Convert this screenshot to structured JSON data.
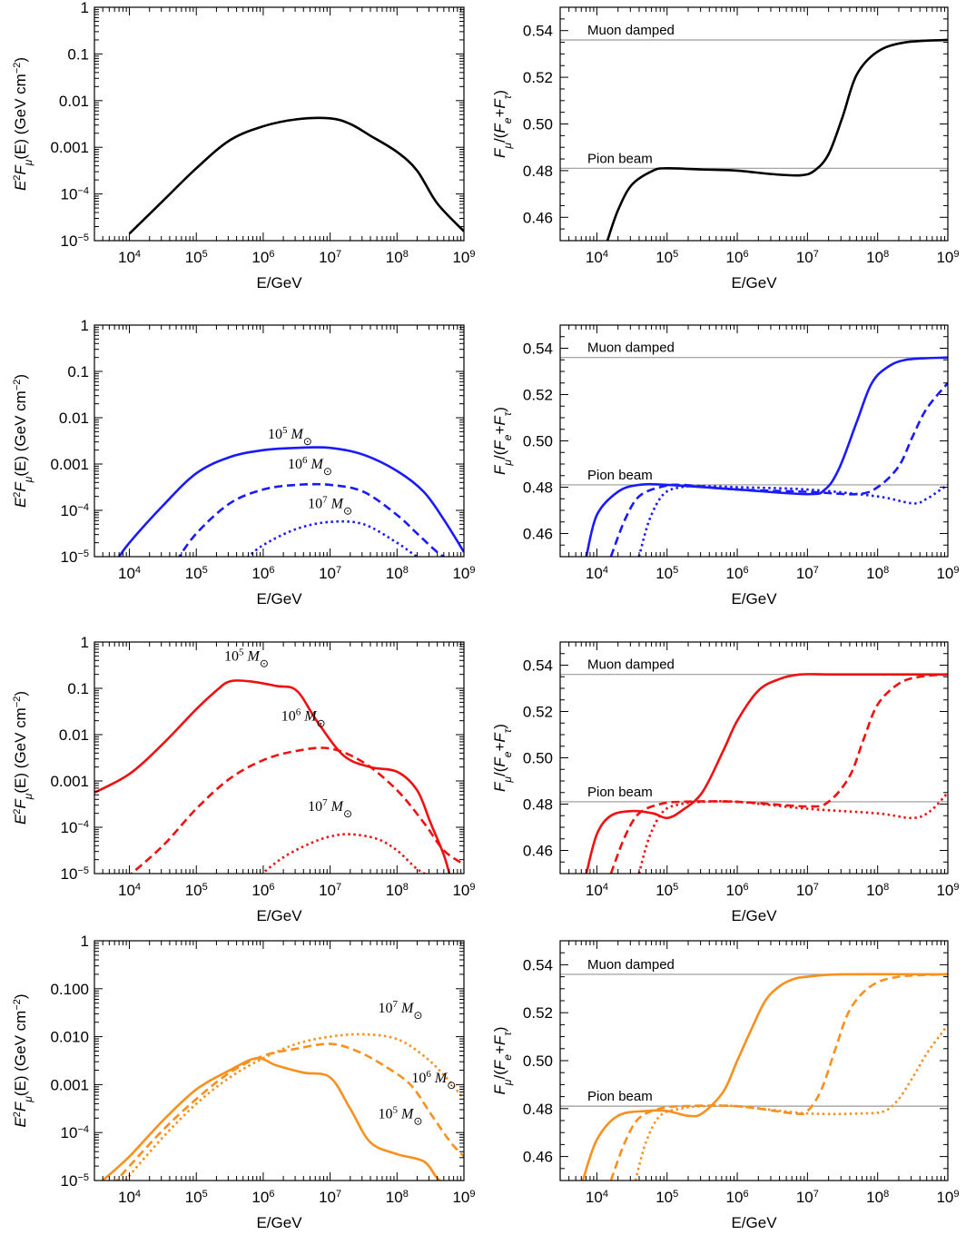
{
  "colors": {
    "black": "#000000",
    "blue": "#1a1aff",
    "red": "#ee1111",
    "orange": "#f7901e",
    "refline": "#999999"
  },
  "chart_data": [
    {
      "panel": "row1-flux",
      "type": "line",
      "xlabel": "E/GeV",
      "ylabel": "E²F_μ(E) (GeV cm⁻²)",
      "xscale": "log",
      "yscale": "log",
      "xlim": [
        3000,
        1000000000.0
      ],
      "ylim": [
        1e-05,
        1
      ],
      "xticklabels": [
        "10⁴",
        "10⁵",
        "10⁶",
        "10⁷",
        "10⁸",
        "10⁹"
      ],
      "yticklabels": [
        "10⁻⁵",
        "10⁻⁴",
        "0.001",
        "0.01",
        "0.1",
        "1"
      ],
      "series": [
        {
          "color": "black",
          "style": "solid",
          "logx": [
            4.0,
            4.5,
            5.0,
            5.5,
            6.0,
            6.5,
            7.0,
            7.3,
            7.6,
            8.0,
            8.3,
            8.6,
            9.0
          ],
          "logy": [
            -4.85,
            -4.15,
            -3.45,
            -2.85,
            -2.55,
            -2.4,
            -2.38,
            -2.5,
            -2.75,
            -3.1,
            -3.5,
            -4.2,
            -4.8
          ]
        }
      ],
      "labels": []
    },
    {
      "panel": "row1-ratio",
      "type": "line",
      "xlabel": "E/GeV",
      "ylabel": "F_μ/(F_e+F_τ)",
      "xscale": "log",
      "xlim": [
        3000,
        1000000000.0
      ],
      "ylim": [
        0.45,
        0.55
      ],
      "xticklabels": [
        "10⁴",
        "10⁵",
        "10⁶",
        "10⁷",
        "10⁸",
        "10⁹"
      ],
      "yticklabels": [
        "0.46",
        "0.48",
        "0.50",
        "0.52",
        "0.54"
      ],
      "reflines": [
        {
          "y": 0.536,
          "text": "Muon damped"
        },
        {
          "y": 0.481,
          "text": "Pion beam"
        }
      ],
      "series": [
        {
          "color": "black",
          "style": "solid",
          "logx": [
            4.15,
            4.3,
            4.5,
            4.8,
            5.0,
            5.5,
            6.0,
            6.5,
            6.9,
            7.1,
            7.3,
            7.5,
            7.7,
            8.0,
            8.4,
            9.0
          ],
          "y": [
            0.45,
            0.463,
            0.474,
            0.48,
            0.481,
            0.4805,
            0.48,
            0.4785,
            0.478,
            0.48,
            0.487,
            0.503,
            0.521,
            0.531,
            0.535,
            0.536
          ]
        }
      ]
    },
    {
      "panel": "row2-flux",
      "type": "line",
      "xlabel": "E/GeV",
      "ylabel": "E²F_μ(E) (GeV cm⁻²)",
      "xscale": "log",
      "yscale": "log",
      "xlim": [
        3000,
        1000000000.0
      ],
      "ylim": [
        1e-05,
        1
      ],
      "xticklabels": [
        "10⁴",
        "10⁵",
        "10⁶",
        "10⁷",
        "10⁸",
        "10⁹"
      ],
      "yticklabels": [
        "10⁻⁵",
        "10⁻⁴",
        "0.001",
        "0.01",
        "0.1",
        "1"
      ],
      "series": [
        {
          "name": "10⁵ M☉",
          "color": "blue",
          "style": "solid",
          "logx": [
            3.8,
            4.0,
            4.5,
            5.0,
            5.5,
            6.0,
            6.5,
            7.0,
            7.5,
            8.0,
            8.4,
            8.7,
            9.0
          ],
          "logy": [
            -5.1,
            -4.7,
            -3.9,
            -3.2,
            -2.85,
            -2.7,
            -2.65,
            -2.65,
            -2.8,
            -3.15,
            -3.6,
            -4.2,
            -4.9
          ]
        },
        {
          "name": "10⁶ M☉",
          "color": "blue",
          "style": "dashed",
          "logx": [
            4.7,
            5.0,
            5.5,
            6.0,
            6.5,
            7.0,
            7.5,
            8.0,
            8.3,
            8.6,
            8.8
          ],
          "logy": [
            -5.1,
            -4.5,
            -3.85,
            -3.55,
            -3.45,
            -3.45,
            -3.6,
            -4.1,
            -4.5,
            -4.9,
            -5.1
          ]
        },
        {
          "name": "10⁷ M☉",
          "color": "blue",
          "style": "dotted",
          "logx": [
            5.7,
            6.0,
            6.5,
            7.0,
            7.5,
            8.0,
            8.3,
            8.5
          ],
          "logy": [
            -5.1,
            -4.75,
            -4.4,
            -4.25,
            -4.3,
            -4.7,
            -5.0,
            -5.1
          ]
        }
      ],
      "labels": [
        {
          "text": "10⁵ M☉",
          "logx": 6.4,
          "logy": -2.45
        },
        {
          "text": "10⁶ M☉",
          "logx": 6.7,
          "logy": -3.1
        },
        {
          "text": "10⁷ M☉",
          "logx": 7.0,
          "logy": -3.95
        }
      ]
    },
    {
      "panel": "row2-ratio",
      "type": "line",
      "xlabel": "E/GeV",
      "ylabel": "F_μ/(F_e+F_τ)",
      "xscale": "log",
      "xlim": [
        3000,
        1000000000.0
      ],
      "ylim": [
        0.45,
        0.55
      ],
      "xticklabels": [
        "10⁴",
        "10⁵",
        "10⁶",
        "10⁷",
        "10⁸",
        "10⁹"
      ],
      "yticklabels": [
        "0.46",
        "0.48",
        "0.50",
        "0.52",
        "0.54"
      ],
      "reflines": [
        {
          "y": 0.536,
          "text": "Muon damped"
        },
        {
          "y": 0.481,
          "text": "Pion beam"
        }
      ],
      "series": [
        {
          "color": "blue",
          "style": "solid",
          "logx": [
            3.85,
            4.0,
            4.3,
            4.6,
            5.0,
            6.0,
            7.0,
            7.25,
            7.45,
            7.7,
            7.9,
            8.1,
            8.4,
            9.0
          ],
          "y": [
            0.45,
            0.468,
            0.478,
            0.481,
            0.481,
            0.479,
            0.477,
            0.479,
            0.488,
            0.508,
            0.524,
            0.531,
            0.535,
            0.536
          ]
        },
        {
          "color": "blue",
          "style": "dashed",
          "logx": [
            4.2,
            4.4,
            4.6,
            4.9,
            5.2,
            6.0,
            7.0,
            7.7,
            8.0,
            8.3,
            8.5,
            8.7,
            9.0
          ],
          "y": [
            0.45,
            0.466,
            0.476,
            0.48,
            0.481,
            0.479,
            0.478,
            0.477,
            0.48,
            0.489,
            0.502,
            0.514,
            0.525
          ]
        },
        {
          "color": "blue",
          "style": "dotted",
          "logx": [
            4.6,
            4.75,
            4.95,
            5.2,
            5.5,
            6.0,
            7.0,
            8.0,
            8.5,
            8.7,
            8.9,
            9.0
          ],
          "y": [
            0.45,
            0.466,
            0.477,
            0.48,
            0.4805,
            0.48,
            0.479,
            0.476,
            0.473,
            0.475,
            0.479,
            0.481
          ]
        }
      ]
    },
    {
      "panel": "row3-flux",
      "type": "line",
      "xlabel": "E/GeV",
      "ylabel": "E²F_μ(E) (GeV cm⁻²)",
      "xscale": "log",
      "yscale": "log",
      "xlim": [
        3000,
        1000000000.0
      ],
      "ylim": [
        1e-05,
        1
      ],
      "xticklabels": [
        "10⁴",
        "10⁵",
        "10⁶",
        "10⁷",
        "10⁸",
        "10⁹"
      ],
      "yticklabels": [
        "10⁻⁵",
        "10⁻⁴",
        "0.001",
        "0.01",
        "0.1",
        "1"
      ],
      "series": [
        {
          "name": "10⁵ M☉",
          "color": "red",
          "style": "solid",
          "logx": [
            3.48,
            4.0,
            4.5,
            5.0,
            5.3,
            5.5,
            5.8,
            6.2,
            6.5,
            6.8,
            7.2,
            7.6,
            8.0,
            8.3,
            8.5,
            8.7,
            8.8
          ],
          "logy": [
            -3.25,
            -2.85,
            -2.2,
            -1.45,
            -1.05,
            -0.85,
            -0.85,
            -0.95,
            -1.05,
            -1.7,
            -2.45,
            -2.7,
            -2.8,
            -3.2,
            -3.9,
            -4.6,
            -5.1
          ]
        },
        {
          "name": "10⁶ M☉",
          "color": "red",
          "style": "dashed",
          "logx": [
            3.95,
            4.5,
            5.0,
            5.5,
            6.0,
            6.5,
            7.0,
            7.5,
            8.0,
            8.4,
            8.7,
            9.0
          ],
          "logy": [
            -5.1,
            -4.4,
            -3.6,
            -2.95,
            -2.55,
            -2.35,
            -2.3,
            -2.6,
            -3.2,
            -3.9,
            -4.5,
            -4.8
          ]
        },
        {
          "name": "10⁷ M☉",
          "color": "red",
          "style": "dotted",
          "logx": [
            5.9,
            6.3,
            6.7,
            7.0,
            7.3,
            7.7,
            8.0,
            8.3,
            8.55
          ],
          "logy": [
            -5.1,
            -4.65,
            -4.35,
            -4.2,
            -4.15,
            -4.25,
            -4.5,
            -4.9,
            -5.1
          ]
        }
      ],
      "labels": [
        {
          "text": "10⁵ M☉",
          "logx": 5.75,
          "logy": -0.4
        },
        {
          "text": "10⁶ M☉",
          "logx": 6.6,
          "logy": -1.7
        },
        {
          "text": "10⁷ M☉",
          "logx": 7.0,
          "logy": -3.65
        }
      ]
    },
    {
      "panel": "row3-ratio",
      "type": "line",
      "xlabel": "E/GeV",
      "ylabel": "F_μ/(F_e+F_τ)",
      "xscale": "log",
      "xlim": [
        3000,
        1000000000.0
      ],
      "ylim": [
        0.45,
        0.55
      ],
      "xticklabels": [
        "10⁴",
        "10⁵",
        "10⁶",
        "10⁷",
        "10⁸",
        "10⁹"
      ],
      "yticklabels": [
        "0.46",
        "0.48",
        "0.50",
        "0.52",
        "0.54"
      ],
      "reflines": [
        {
          "y": 0.536,
          "text": "Muon damped"
        },
        {
          "y": 0.481,
          "text": "Pion beam"
        }
      ],
      "series": [
        {
          "color": "red",
          "style": "solid",
          "logx": [
            3.85,
            4.0,
            4.2,
            4.5,
            4.8,
            5.0,
            5.2,
            5.5,
            5.8,
            6.0,
            6.3,
            6.6,
            6.9,
            7.3,
            8.0,
            9.0
          ],
          "y": [
            0.45,
            0.467,
            0.475,
            0.477,
            0.476,
            0.474,
            0.477,
            0.485,
            0.503,
            0.516,
            0.529,
            0.534,
            0.536,
            0.536,
            0.536,
            0.536
          ]
        },
        {
          "color": "red",
          "style": "dashed",
          "logx": [
            4.2,
            4.4,
            4.6,
            4.9,
            5.2,
            6.0,
            7.0,
            7.3,
            7.6,
            7.8,
            8.0,
            8.3,
            8.6,
            9.0
          ],
          "y": [
            0.45,
            0.466,
            0.476,
            0.48,
            0.481,
            0.481,
            0.479,
            0.481,
            0.492,
            0.508,
            0.523,
            0.532,
            0.535,
            0.536
          ]
        },
        {
          "color": "red",
          "style": "dotted",
          "logx": [
            4.6,
            4.75,
            4.95,
            5.2,
            5.5,
            6.0,
            7.0,
            8.0,
            8.5,
            8.75,
            9.0
          ],
          "y": [
            0.45,
            0.466,
            0.477,
            0.48,
            0.481,
            0.481,
            0.478,
            0.476,
            0.474,
            0.477,
            0.485
          ]
        }
      ]
    },
    {
      "panel": "row4-flux",
      "type": "line",
      "xlabel": "E/GeV",
      "ylabel": "E²F_μ(E) (GeV cm⁻²)",
      "xscale": "log",
      "yscale": "log",
      "xlim": [
        3000,
        1000000000.0
      ],
      "ylim": [
        1e-05,
        1
      ],
      "xticklabels": [
        "10⁴",
        "10⁵",
        "10⁶",
        "10⁷",
        "10⁸",
        "10⁹"
      ],
      "yticklabels": [
        "10⁻⁵",
        "10⁻⁴",
        "0.001",
        "0.010",
        "0.100",
        "1"
      ],
      "series": [
        {
          "name": "10⁵ M☉",
          "color": "orange",
          "style": "solid",
          "logx": [
            3.6,
            4.0,
            4.5,
            5.0,
            5.5,
            5.9,
            6.2,
            6.6,
            7.0,
            7.3,
            7.6,
            8.0,
            8.4,
            8.6,
            8.75
          ],
          "logy": [
            -5.0,
            -4.5,
            -3.75,
            -3.1,
            -2.7,
            -2.45,
            -2.6,
            -2.75,
            -2.85,
            -3.5,
            -4.2,
            -4.45,
            -4.6,
            -4.95,
            -5.1
          ]
        },
        {
          "name": "10⁶ M☉",
          "color": "orange",
          "style": "dashed",
          "logx": [
            3.75,
            4.0,
            4.5,
            5.0,
            5.5,
            6.0,
            6.5,
            7.0,
            7.4,
            7.8,
            8.2,
            8.5,
            8.8,
            9.0
          ],
          "logy": [
            -5.1,
            -4.7,
            -3.95,
            -3.3,
            -2.75,
            -2.4,
            -2.25,
            -2.15,
            -2.3,
            -2.6,
            -3.0,
            -3.6,
            -4.2,
            -4.5
          ]
        },
        {
          "name": "10⁷ M☉",
          "color": "orange",
          "style": "dotted",
          "logx": [
            3.9,
            4.0,
            4.5,
            5.0,
            5.5,
            6.0,
            6.5,
            7.0,
            7.5,
            8.0,
            8.4,
            8.7,
            9.0
          ],
          "logy": [
            -5.1,
            -4.9,
            -4.1,
            -3.4,
            -2.85,
            -2.45,
            -2.15,
            -2.0,
            -1.95,
            -2.05,
            -2.4,
            -2.8,
            -3.3
          ]
        }
      ],
      "labels": [
        {
          "text": "10⁷ M☉",
          "logx": 8.05,
          "logy": -1.5
        },
        {
          "text": "10⁶ M☉",
          "logx": 8.55,
          "logy": -2.95
        },
        {
          "text": "10⁵ M☉",
          "logx": 8.05,
          "logy": -3.7
        }
      ]
    },
    {
      "panel": "row4-ratio",
      "type": "line",
      "xlabel": "E/GeV",
      "ylabel": "F_μ/(F_e+F_τ)",
      "xscale": "log",
      "xlim": [
        3000,
        1000000000.0
      ],
      "ylim": [
        0.45,
        0.55
      ],
      "xticklabels": [
        "10⁴",
        "10⁵",
        "10⁶",
        "10⁷",
        "10⁸",
        "10⁹"
      ],
      "yticklabels": [
        "0.46",
        "0.48",
        "0.50",
        "0.52",
        "0.54"
      ],
      "reflines": [
        {
          "y": 0.536,
          "text": "Muon damped"
        },
        {
          "y": 0.481,
          "text": "Pion beam"
        }
      ],
      "series": [
        {
          "color": "orange",
          "style": "solid",
          "logx": [
            3.8,
            4.0,
            4.3,
            4.7,
            5.0,
            5.3,
            5.5,
            5.8,
            6.0,
            6.2,
            6.4,
            6.6,
            6.8,
            7.0,
            7.5,
            9.0
          ],
          "y": [
            0.45,
            0.467,
            0.477,
            0.479,
            0.479,
            0.477,
            0.478,
            0.487,
            0.5,
            0.513,
            0.525,
            0.531,
            0.534,
            0.535,
            0.536,
            0.536
          ]
        },
        {
          "color": "orange",
          "style": "dashed",
          "logx": [
            4.2,
            4.4,
            4.6,
            4.9,
            5.2,
            6.0,
            6.8,
            7.0,
            7.2,
            7.4,
            7.6,
            7.9,
            8.3,
            9.0
          ],
          "y": [
            0.45,
            0.466,
            0.476,
            0.48,
            0.481,
            0.481,
            0.478,
            0.479,
            0.488,
            0.505,
            0.521,
            0.531,
            0.535,
            0.536
          ]
        },
        {
          "color": "orange",
          "style": "dotted",
          "logx": [
            4.55,
            4.7,
            4.9,
            5.2,
            5.5,
            6.0,
            7.0,
            7.8,
            8.1,
            8.3,
            8.5,
            8.7,
            8.9,
            9.0
          ],
          "y": [
            0.45,
            0.466,
            0.477,
            0.48,
            0.481,
            0.481,
            0.478,
            0.478,
            0.479,
            0.484,
            0.493,
            0.503,
            0.511,
            0.515
          ]
        }
      ]
    }
  ]
}
